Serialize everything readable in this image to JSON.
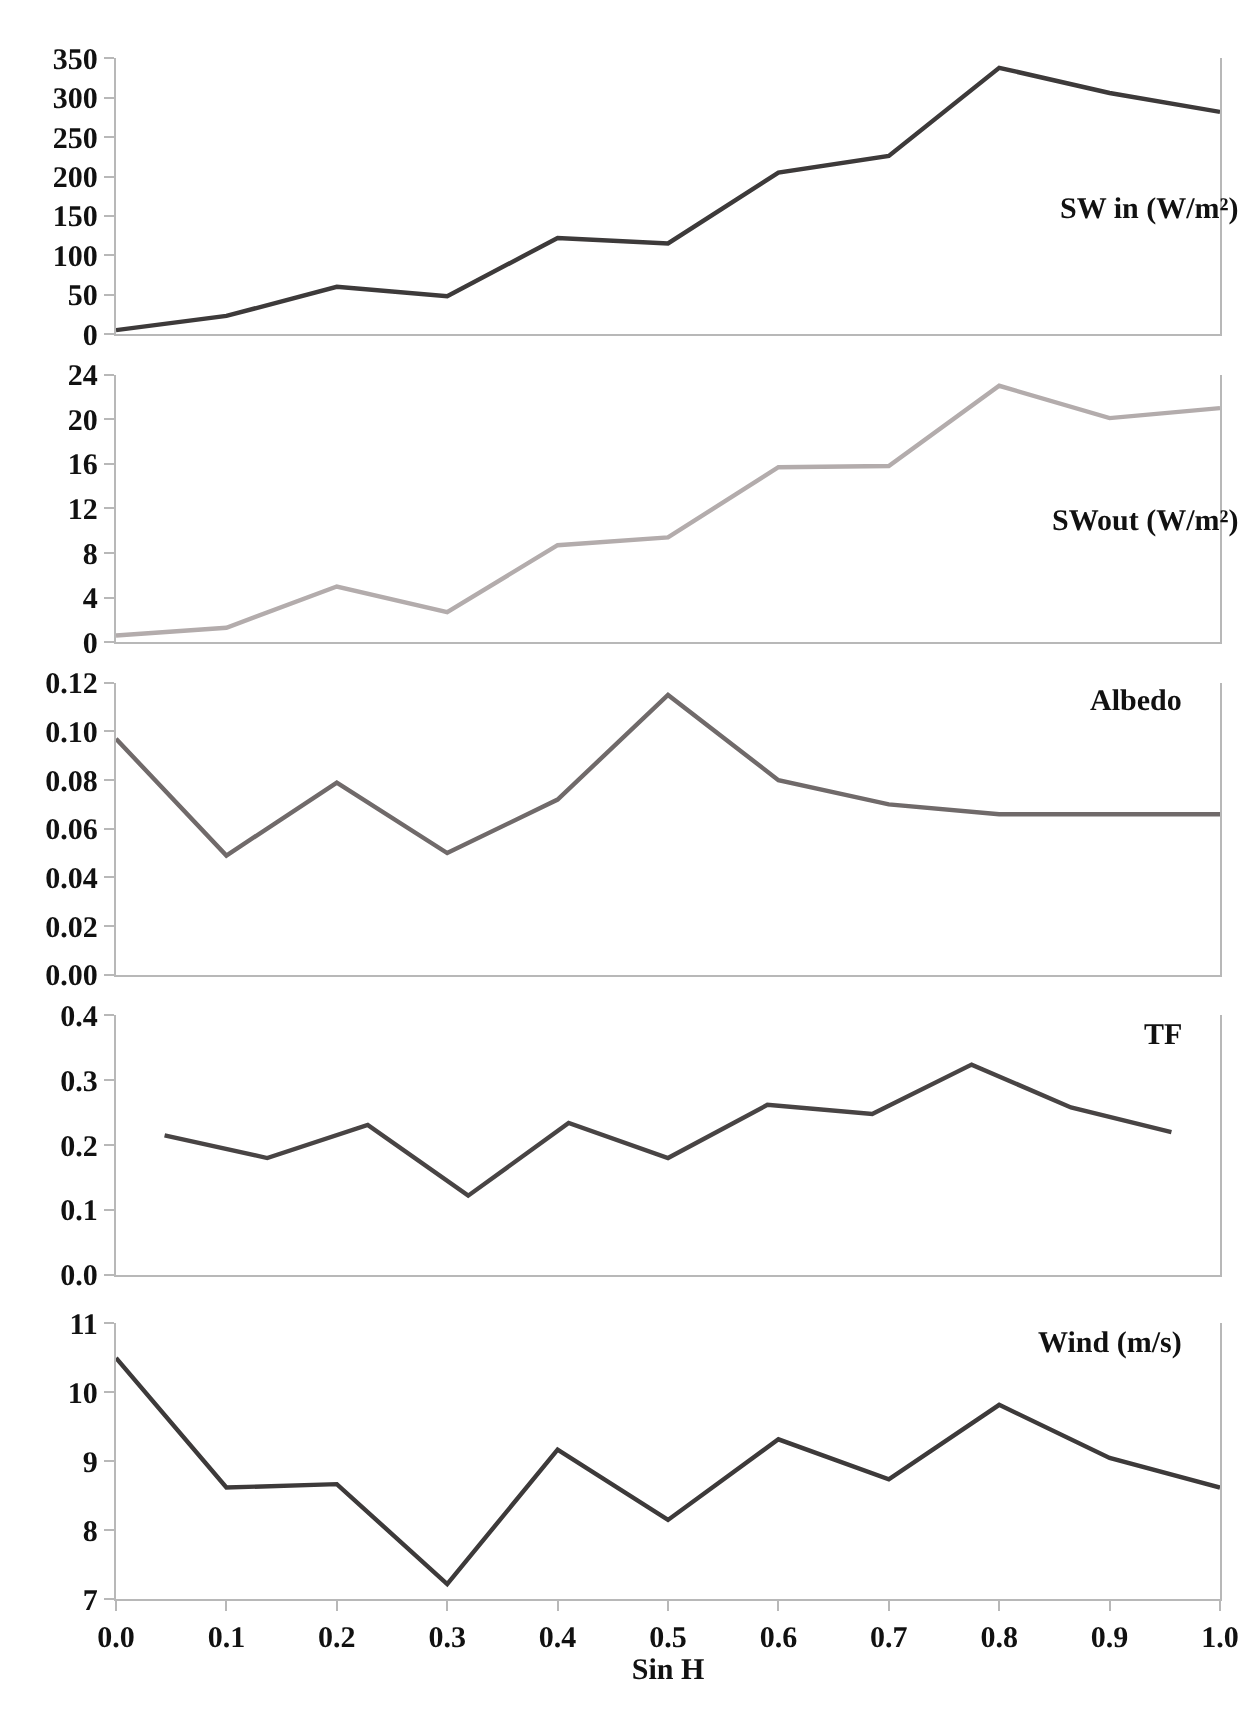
{
  "chart_data": [
    {
      "type": "line",
      "x": [
        0.0,
        0.1,
        0.2,
        0.3,
        0.4,
        0.5,
        0.6,
        0.7,
        0.8,
        0.9,
        1.0
      ],
      "xlim": [
        0,
        1
      ],
      "ylim": [
        0,
        350
      ],
      "yticks": [
        0,
        50,
        100,
        150,
        200,
        250,
        300,
        350
      ],
      "tick_labels": "y",
      "series": [
        {
          "name": "SW in (W/m²)",
          "color": "#3d3a3a",
          "values": [
            5,
            23,
            60,
            48,
            122,
            115,
            205,
            226,
            338,
            306,
            282
          ]
        }
      ]
    },
    {
      "type": "line",
      "x": [
        0.0,
        0.1,
        0.2,
        0.3,
        0.4,
        0.5,
        0.6,
        0.7,
        0.8,
        0.9,
        1.0
      ],
      "xlim": [
        0,
        1
      ],
      "ylim": [
        0,
        24
      ],
      "yticks": [
        0,
        4,
        8,
        12,
        16,
        20,
        24
      ],
      "tick_labels": "y",
      "series": [
        {
          "name": "SWout (W/m²)",
          "color": "#b3acac",
          "values": [
            0.6,
            1.3,
            5.0,
            2.7,
            8.7,
            9.4,
            15.7,
            15.8,
            23.0,
            20.1,
            21.0
          ]
        }
      ]
    },
    {
      "type": "line",
      "x": [
        0.0,
        0.1,
        0.2,
        0.3,
        0.4,
        0.5,
        0.6,
        0.7,
        0.8,
        0.9,
        1.0
      ],
      "xlim": [
        0,
        1
      ],
      "ylim": [
        0,
        0.12
      ],
      "yticks": [
        {
          "value": 0,
          "label": "0.00"
        },
        {
          "value": 0.02,
          "label": "0.02"
        },
        {
          "value": 0.04,
          "label": "0.04"
        },
        {
          "value": 0.06,
          "label": "0.06"
        },
        {
          "value": 0.08,
          "label": "0.08"
        },
        {
          "value": 0.1,
          "label": "0.10"
        },
        {
          "value": 0.12,
          "label": "0.12"
        }
      ],
      "tick_labels": "y",
      "series": [
        {
          "name": "Albedo",
          "color": "#706a6a",
          "values": [
            0.097,
            0.049,
            0.079,
            0.05,
            0.072,
            0.115,
            0.08,
            0.07,
            0.066,
            0.066,
            0.066
          ]
        }
      ]
    },
    {
      "type": "line",
      "x": [
        0.044,
        0.137,
        0.228,
        0.319,
        0.41,
        0.5,
        0.59,
        0.685,
        0.775,
        0.865,
        0.956
      ],
      "xlim": [
        0,
        1
      ],
      "ylim": [
        0,
        0.4
      ],
      "yticks": [
        {
          "value": 0,
          "label": "0.0"
        },
        0.1,
        0.2,
        0.3,
        0.4
      ],
      "tick_labels": "y",
      "series": [
        {
          "name": "TF",
          "color": "#484444",
          "values": [
            0.215,
            0.18,
            0.231,
            0.122,
            0.234,
            0.18,
            0.262,
            0.248,
            0.324,
            0.258,
            0.22
          ]
        }
      ]
    },
    {
      "type": "line",
      "x": [
        0.0,
        0.1,
        0.2,
        0.3,
        0.4,
        0.5,
        0.6,
        0.7,
        0.8,
        0.9,
        1.0
      ],
      "xlim": [
        0,
        1
      ],
      "xticks": [
        {
          "value": 0,
          "label": "0.0"
        },
        0.1,
        0.2,
        0.3,
        0.4,
        0.5,
        0.6,
        0.7,
        0.8,
        0.9,
        {
          "value": 1,
          "label": "1.0"
        }
      ],
      "xlabel": "Sin H",
      "ylim": [
        7,
        11
      ],
      "yticks": [
        7,
        8,
        9,
        10,
        11
      ],
      "series": [
        {
          "name": "Wind (m/s)",
          "color": "#3d3a3a",
          "values": [
            10.5,
            8.62,
            8.67,
            7.22,
            9.17,
            8.15,
            9.32,
            8.74,
            9.82,
            9.05,
            8.62
          ]
        }
      ]
    }
  ]
}
